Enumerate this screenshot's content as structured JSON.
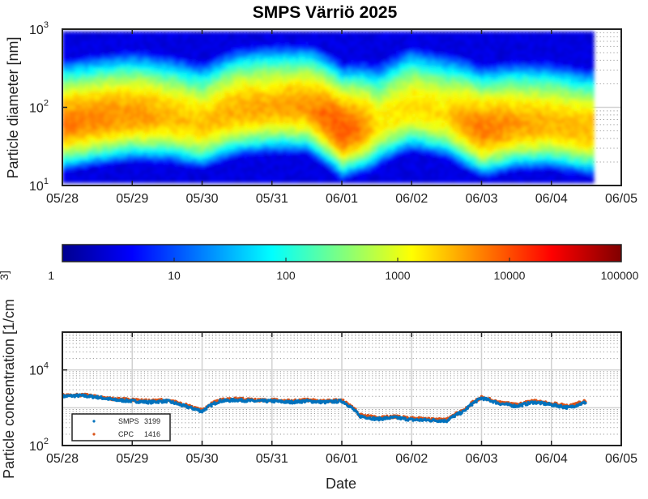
{
  "chart_data": [
    {
      "type": "heatmap",
      "title": "SMPS Värriö 2025",
      "xlabel": "",
      "ylabel": "Particle diameter [nm]",
      "x_range": [
        "2025-05-28",
        "2025-06-05"
      ],
      "x_ticks": [
        "05/28",
        "05/29",
        "05/30",
        "05/31",
        "06/01",
        "06/02",
        "06/03",
        "06/04",
        "06/05"
      ],
      "y_scale": "log",
      "ylim": [
        10,
        1000
      ],
      "y_ticks": [
        {
          "base": "10",
          "exp": "1"
        },
        {
          "base": "10",
          "exp": "2"
        },
        {
          "base": "10",
          "exp": "3"
        }
      ],
      "data_end": "2025-06-04 14:00",
      "grid": true,
      "colormap": "jet",
      "colorbar": {
        "scale": "log",
        "range": [
          1,
          100000
        ],
        "ticks": [
          "1",
          "10",
          "100",
          "1000",
          "10000",
          "100000"
        ],
        "label_fragment": "3]"
      },
      "mode_diameter_nm": {
        "x": [
          "2025-05-28 00:00",
          "2025-05-28 12:00",
          "2025-05-29 00:00",
          "2025-05-29 12:00",
          "2025-05-30 00:00",
          "2025-05-30 12:00",
          "2025-05-31 00:00",
          "2025-05-31 12:00",
          "2025-06-01 00:00",
          "2025-06-01 12:00",
          "2025-06-02 00:00",
          "2025-06-02 12:00",
          "2025-06-03 00:00",
          "2025-06-03 12:00",
          "2025-06-04 00:00",
          "2025-06-04 12:00"
        ],
        "y": [
          60,
          70,
          80,
          75,
          60,
          90,
          100,
          100,
          50,
          60,
          100,
          80,
          50,
          60,
          60,
          50
        ]
      },
      "peak_dN_dlogDp": {
        "x": [
          "2025-05-28 00:00",
          "2025-05-28 12:00",
          "2025-05-29 00:00",
          "2025-05-29 12:00",
          "2025-05-30 00:00",
          "2025-05-30 12:00",
          "2025-05-31 00:00",
          "2025-05-31 12:00",
          "2025-06-01 00:00",
          "2025-06-01 12:00",
          "2025-06-02 00:00",
          "2025-06-02 12:00",
          "2025-06-03 00:00",
          "2025-06-03 12:00",
          "2025-06-04 00:00",
          "2025-06-04 12:00"
        ],
        "y": [
          6000,
          5000,
          4500,
          3000,
          2500,
          3500,
          3500,
          4000,
          10000,
          1500,
          2000,
          2000,
          6000,
          4000,
          3000,
          3000
        ]
      }
    },
    {
      "type": "line",
      "title": "",
      "xlabel": "Date",
      "ylabel": "Particle concentration [1/cm",
      "x_range": [
        "2025-05-28",
        "2025-06-05"
      ],
      "x_ticks": [
        "05/28",
        "05/29",
        "05/30",
        "05/31",
        "06/01",
        "06/02",
        "06/03",
        "06/04",
        "06/05"
      ],
      "y_scale": "log",
      "ylim": [
        100,
        100000
      ],
      "y_ticks": [
        {
          "base": "10",
          "exp": "2"
        },
        {
          "base": "10",
          "exp": "4"
        }
      ],
      "grid": true,
      "legend_position": "bottom-left",
      "legend": [
        {
          "label": "SMPS",
          "count": "3199",
          "color": "#0072bd"
        },
        {
          "label": "CPC",
          "count": "1416",
          "color": "#d95319"
        }
      ],
      "x": [
        "2025-05-28 00:00",
        "2025-05-28 06:00",
        "2025-05-28 12:00",
        "2025-05-28 18:00",
        "2025-05-29 00:00",
        "2025-05-29 06:00",
        "2025-05-29 12:00",
        "2025-05-29 18:00",
        "2025-05-30 00:00",
        "2025-05-30 06:00",
        "2025-05-30 12:00",
        "2025-05-30 18:00",
        "2025-05-31 00:00",
        "2025-05-31 06:00",
        "2025-05-31 12:00",
        "2025-05-31 18:00",
        "2025-06-01 00:00",
        "2025-06-01 06:00",
        "2025-06-01 12:00",
        "2025-06-01 18:00",
        "2025-06-02 00:00",
        "2025-06-02 06:00",
        "2025-06-02 12:00",
        "2025-06-02 18:00",
        "2025-06-03 00:00",
        "2025-06-03 06:00",
        "2025-06-03 12:00",
        "2025-06-03 18:00",
        "2025-06-04 00:00",
        "2025-06-04 06:00",
        "2025-06-04 12:00"
      ],
      "series": [
        {
          "name": "SMPS",
          "values": [
            2000,
            2100,
            1900,
            1600,
            1500,
            1400,
            1500,
            1100,
            800,
            1500,
            1600,
            1500,
            1500,
            1400,
            1500,
            1400,
            1500,
            600,
            500,
            550,
            480,
            470,
            450,
            800,
            1800,
            1300,
            1100,
            1400,
            1200,
            1000,
            1400
          ]
        },
        {
          "name": "CPC",
          "values": [
            2100,
            2200,
            2000,
            1700,
            1600,
            1500,
            1600,
            1200,
            850,
            1600,
            1700,
            1600,
            1600,
            1500,
            1600,
            1500,
            1600,
            650,
            540,
            590,
            520,
            500,
            480,
            850,
            1900,
            1400,
            1200,
            1500,
            1300,
            1100,
            1500
          ]
        }
      ]
    }
  ]
}
